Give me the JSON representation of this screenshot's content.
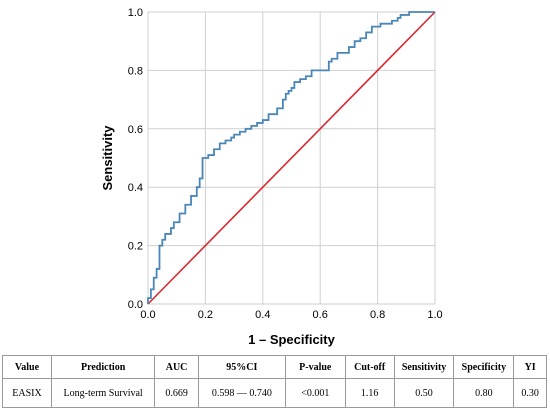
{
  "chart_data": {
    "type": "line",
    "xlabel": "1 – Specificity",
    "ylabel": "Sensitivity",
    "xlim": [
      0.0,
      1.0
    ],
    "ylim": [
      0.0,
      1.0
    ],
    "xticks": [
      "0.0",
      "0.2",
      "0.4",
      "0.6",
      "0.8",
      "1.0"
    ],
    "yticks": [
      "0.0",
      "0.2",
      "0.4",
      "0.6",
      "0.8",
      "1.0"
    ],
    "grid": true,
    "colors": {
      "roc_curve": "#4a86b8",
      "reference_line": "#d9292f",
      "grid": "#d0d0d0"
    },
    "series": [
      {
        "name": "",
        "x": [
          0.0,
          0.0,
          0.01,
          0.01,
          0.02,
          0.02,
          0.03,
          0.03,
          0.04,
          0.04,
          0.05,
          0.05,
          0.06,
          0.06,
          0.08,
          0.08,
          0.09,
          0.09,
          0.11,
          0.11,
          0.13,
          0.13,
          0.15,
          0.15,
          0.17,
          0.17,
          0.18,
          0.18,
          0.19,
          0.19,
          0.21,
          0.21,
          0.23,
          0.23,
          0.25,
          0.25,
          0.27,
          0.27,
          0.29,
          0.29,
          0.3,
          0.3,
          0.32,
          0.32,
          0.34,
          0.34,
          0.36,
          0.36,
          0.38,
          0.38,
          0.4,
          0.4,
          0.42,
          0.42,
          0.45,
          0.45,
          0.47,
          0.47,
          0.48,
          0.48,
          0.49,
          0.49,
          0.5,
          0.5,
          0.51,
          0.51,
          0.53,
          0.53,
          0.55,
          0.55,
          0.57,
          0.57,
          0.63,
          0.63,
          0.64,
          0.64,
          0.66,
          0.66,
          0.7,
          0.7,
          0.72,
          0.72,
          0.74,
          0.74,
          0.76,
          0.76,
          0.78,
          0.78,
          0.81,
          0.81,
          0.85,
          0.85,
          0.87,
          0.87,
          0.88,
          0.88,
          0.91,
          0.91,
          0.92,
          1.0
        ],
        "y": [
          0.0,
          0.02,
          0.02,
          0.05,
          0.05,
          0.09,
          0.09,
          0.12,
          0.12,
          0.2,
          0.2,
          0.22,
          0.22,
          0.24,
          0.24,
          0.26,
          0.26,
          0.28,
          0.28,
          0.31,
          0.31,
          0.34,
          0.34,
          0.37,
          0.37,
          0.4,
          0.4,
          0.43,
          0.43,
          0.5,
          0.5,
          0.51,
          0.51,
          0.53,
          0.53,
          0.55,
          0.55,
          0.56,
          0.56,
          0.57,
          0.57,
          0.58,
          0.58,
          0.59,
          0.59,
          0.6,
          0.6,
          0.61,
          0.61,
          0.62,
          0.62,
          0.63,
          0.63,
          0.65,
          0.65,
          0.67,
          0.67,
          0.7,
          0.7,
          0.72,
          0.72,
          0.73,
          0.73,
          0.74,
          0.74,
          0.76,
          0.76,
          0.77,
          0.77,
          0.78,
          0.78,
          0.8,
          0.8,
          0.83,
          0.83,
          0.84,
          0.84,
          0.86,
          0.86,
          0.88,
          0.88,
          0.9,
          0.9,
          0.91,
          0.91,
          0.93,
          0.93,
          0.95,
          0.95,
          0.96,
          0.96,
          0.97,
          0.97,
          0.98,
          0.98,
          0.99,
          0.99,
          1.0,
          1.0,
          1.0
        ]
      },
      {
        "name": "",
        "x": [
          0.0,
          1.0
        ],
        "y": [
          0.0,
          1.0
        ]
      }
    ]
  },
  "table": {
    "headers": [
      "Value",
      "Prediction",
      "AUC",
      "95%CI",
      "P-value",
      "Cut-off",
      "Sensitivity",
      "Specificity",
      "YI"
    ],
    "row": [
      "EASIX",
      "Long-term Survival",
      "0.669",
      "0.598 — 0.740",
      "<0.001",
      "1.16",
      "0.50",
      "0.80",
      "0.30"
    ]
  }
}
